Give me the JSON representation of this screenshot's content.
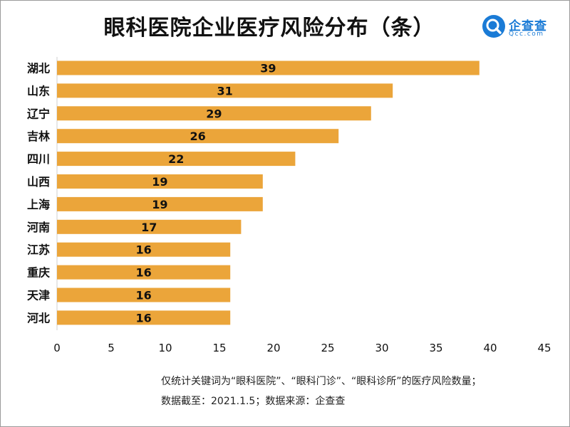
{
  "title": "眼科医院企业医疗风险分布（条）",
  "logo": {
    "name": "企查查",
    "sub": "Qcc.com"
  },
  "footnotes": [
    "仅统计关键词为“眼科医院”、“眼科门诊”、“眼科诊所”的医疗风险数量；",
    "数据截至：2021.1.5；数据来源：企查查"
  ],
  "colors": {
    "bar": "#EBA53A",
    "logo": "#1A7BD6"
  },
  "chart_data": {
    "type": "bar",
    "orientation": "horizontal",
    "title": "眼科医院企业医疗风险分布（条）",
    "categories": [
      "湖北",
      "山东",
      "辽宁",
      "吉林",
      "四川",
      "山西",
      "上海",
      "河南",
      "江苏",
      "重庆",
      "天津",
      "河北"
    ],
    "values": [
      39,
      31,
      29,
      26,
      22,
      19,
      19,
      17,
      16,
      16,
      16,
      16
    ],
    "xlim": [
      0,
      45
    ],
    "xticks": [
      0,
      5,
      10,
      15,
      20,
      25,
      30,
      35,
      40,
      45
    ],
    "grid": false,
    "data_labels": true
  }
}
